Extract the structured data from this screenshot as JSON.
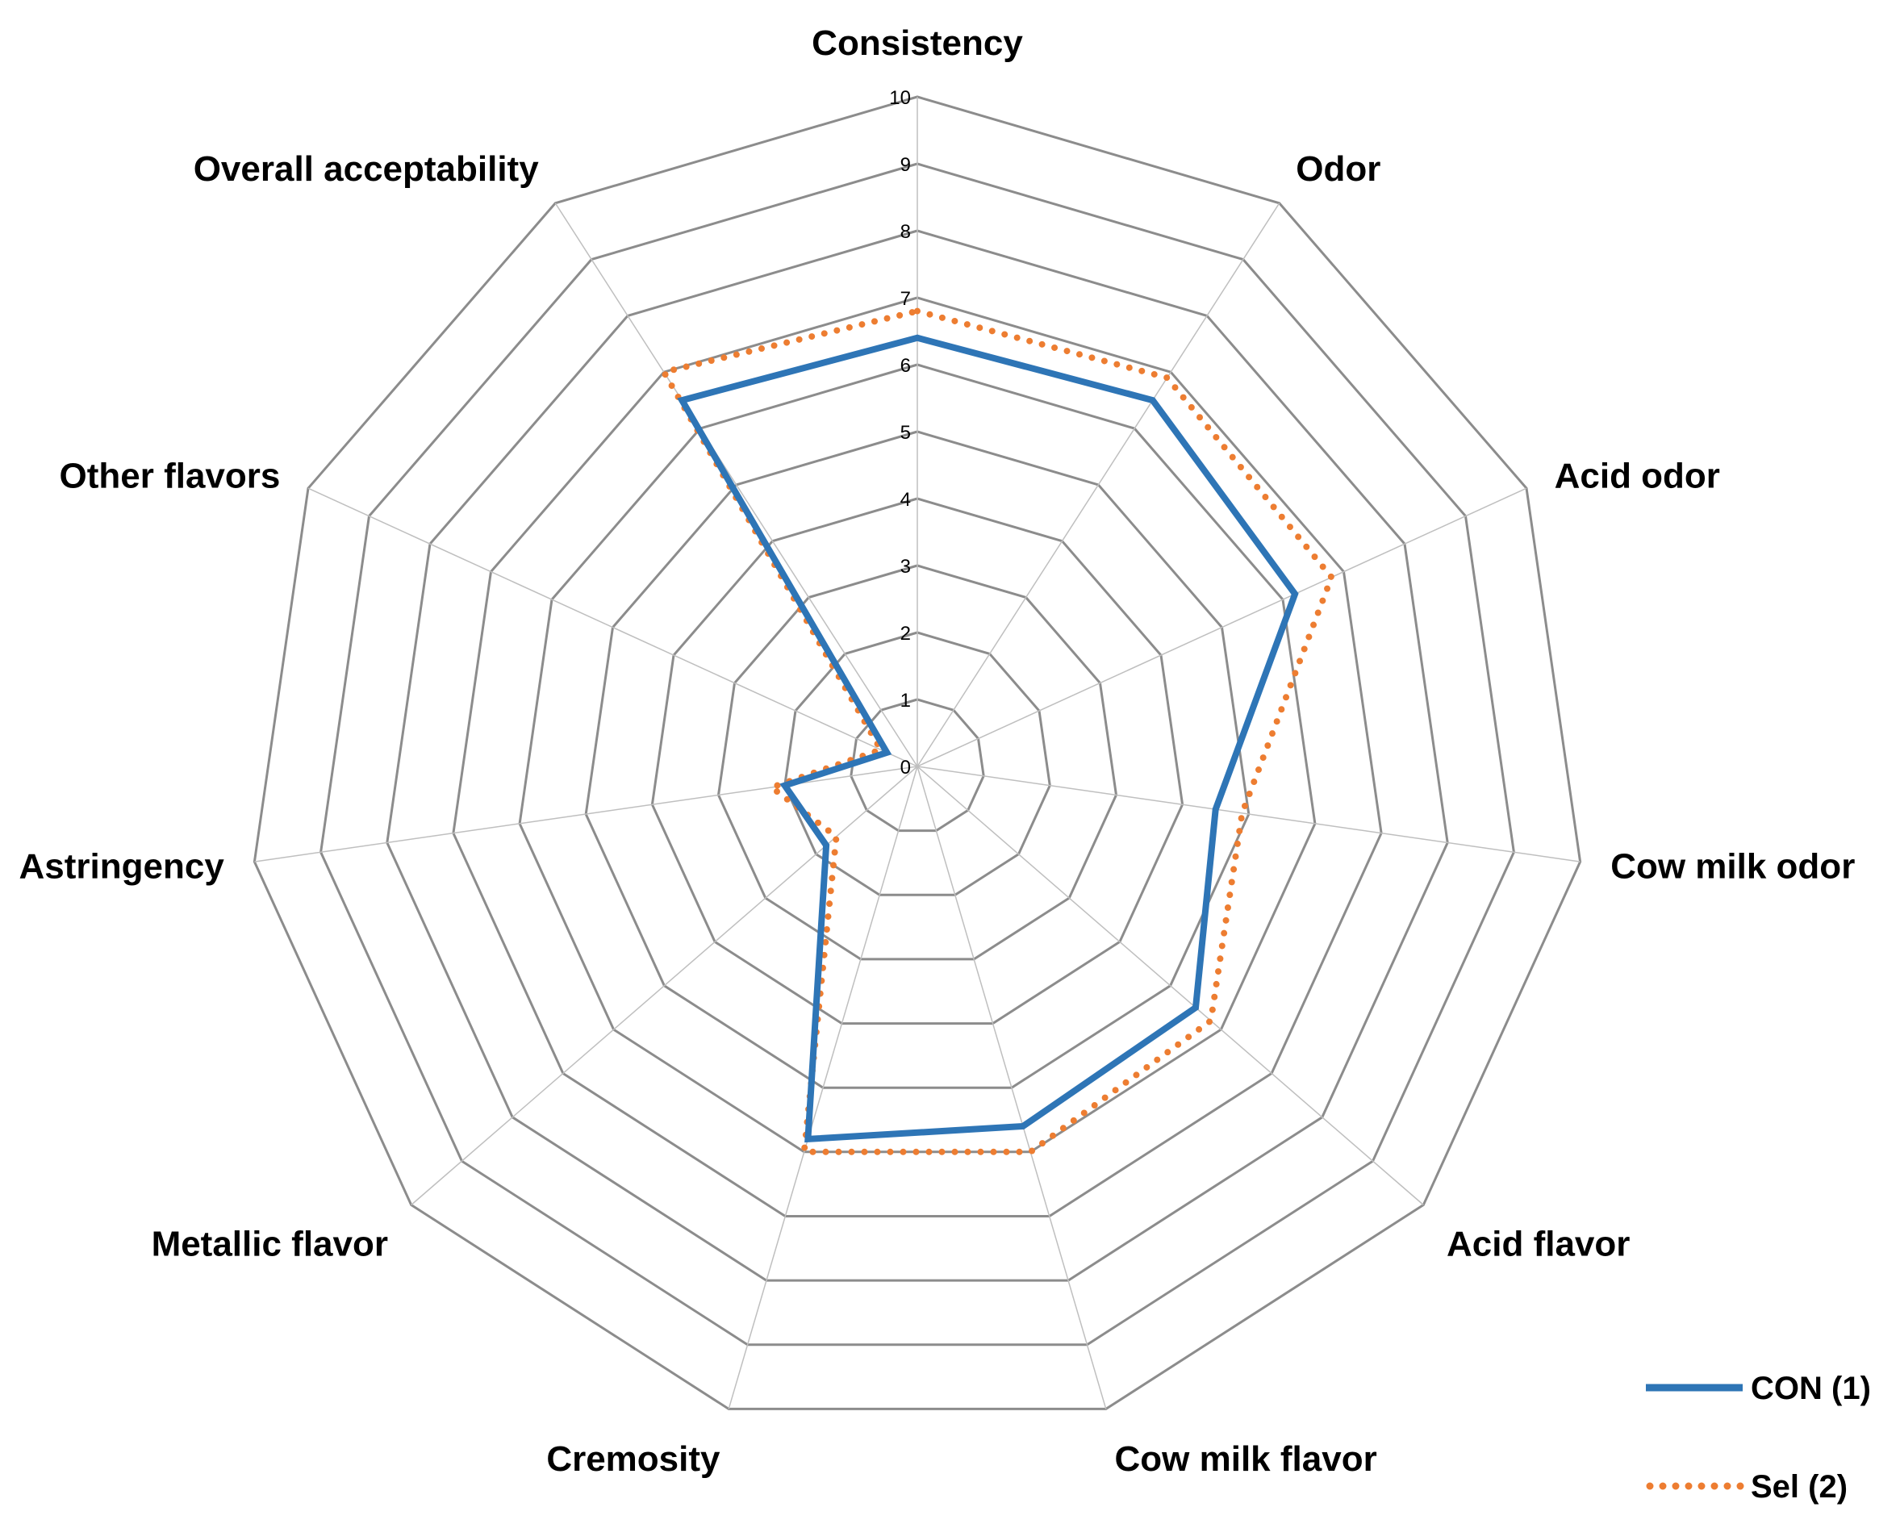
{
  "chart_data": {
    "type": "radar",
    "axes": [
      "Consistency",
      "Odor",
      "Acid odor",
      "Cow milk odor",
      "Acid flavor",
      "Cow milk flavor",
      "Cremosity",
      "Metallic flavor",
      "Astringency",
      "Other flavors",
      "Overall acceptability"
    ],
    "rmin": 0,
    "rmax": 10,
    "ticks": [
      "0",
      "1",
      "2",
      "3",
      "4",
      "5",
      "6",
      "7",
      "8",
      "9",
      "10"
    ],
    "grid": true,
    "legend_position": "bottom-right",
    "series": [
      {
        "name": "CON (1)",
        "color": "#2E75B6",
        "style": "solid",
        "values": [
          6.4,
          6.5,
          6.2,
          4.5,
          5.5,
          5.6,
          5.8,
          1.8,
          2.0,
          0.5,
          6.5
        ]
      },
      {
        "name": "Sel (2)",
        "color": "#ED7D31",
        "style": "dotted",
        "values": [
          6.8,
          6.9,
          6.8,
          4.9,
          5.8,
          6.0,
          6.0,
          1.6,
          2.2,
          0.6,
          7.0
        ]
      }
    ]
  }
}
